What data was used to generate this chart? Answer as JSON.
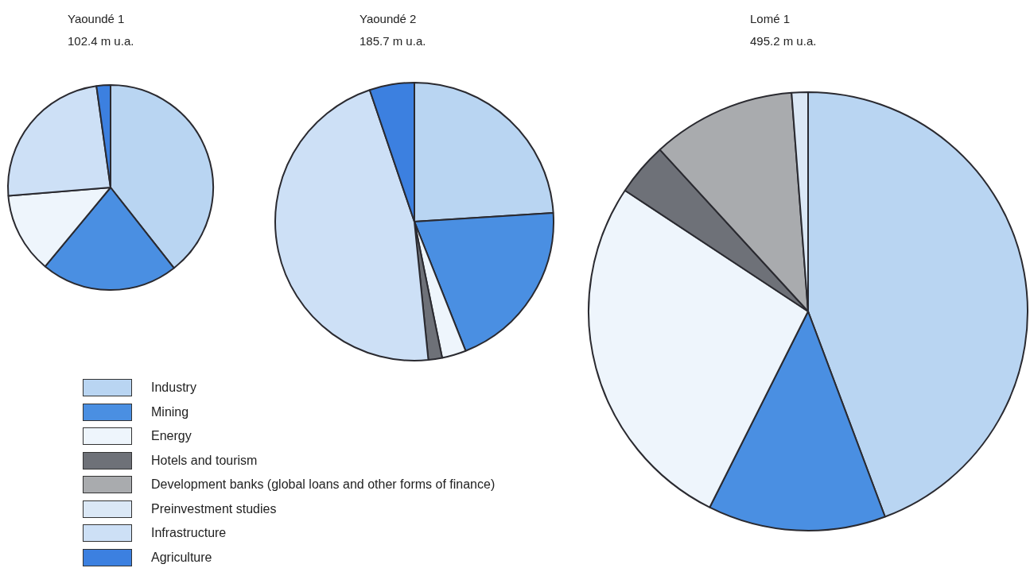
{
  "chart_data": {
    "type": "pie",
    "legend": "bottom left",
    "categories": [
      "Industry",
      "Mining",
      "Energy",
      "Hotels and tourism",
      "Development banks (global loans and other forms of finance)",
      "Preinvestment studies",
      "Infrastructure",
      "Agriculture"
    ],
    "colors": [
      "#b9d5f2",
      "#4a8fe2",
      "#eef5fc",
      "#6e7178",
      "#a9abae",
      "#dbe8f6",
      "#cde0f6",
      "#3c80e0"
    ],
    "series": [
      {
        "name": "Yaoundé 1",
        "values": [
          39.4,
          21.6,
          12.7,
          0,
          0,
          0,
          24.1,
          2.2
        ]
      },
      {
        "name": "Yaoundé 2",
        "values": [
          24,
          20,
          2.8,
          1.6,
          0,
          0,
          46.4,
          5.2
        ]
      },
      {
        "name": "Lomé 1",
        "values": [
          44.3,
          13.1,
          26.9,
          3.9,
          10.6,
          1.2,
          0,
          0
        ]
      }
    ],
    "annotations": [
      "102.4 m u.a.",
      "185.7 m u.a.",
      "495.2 m u.a."
    ]
  }
}
